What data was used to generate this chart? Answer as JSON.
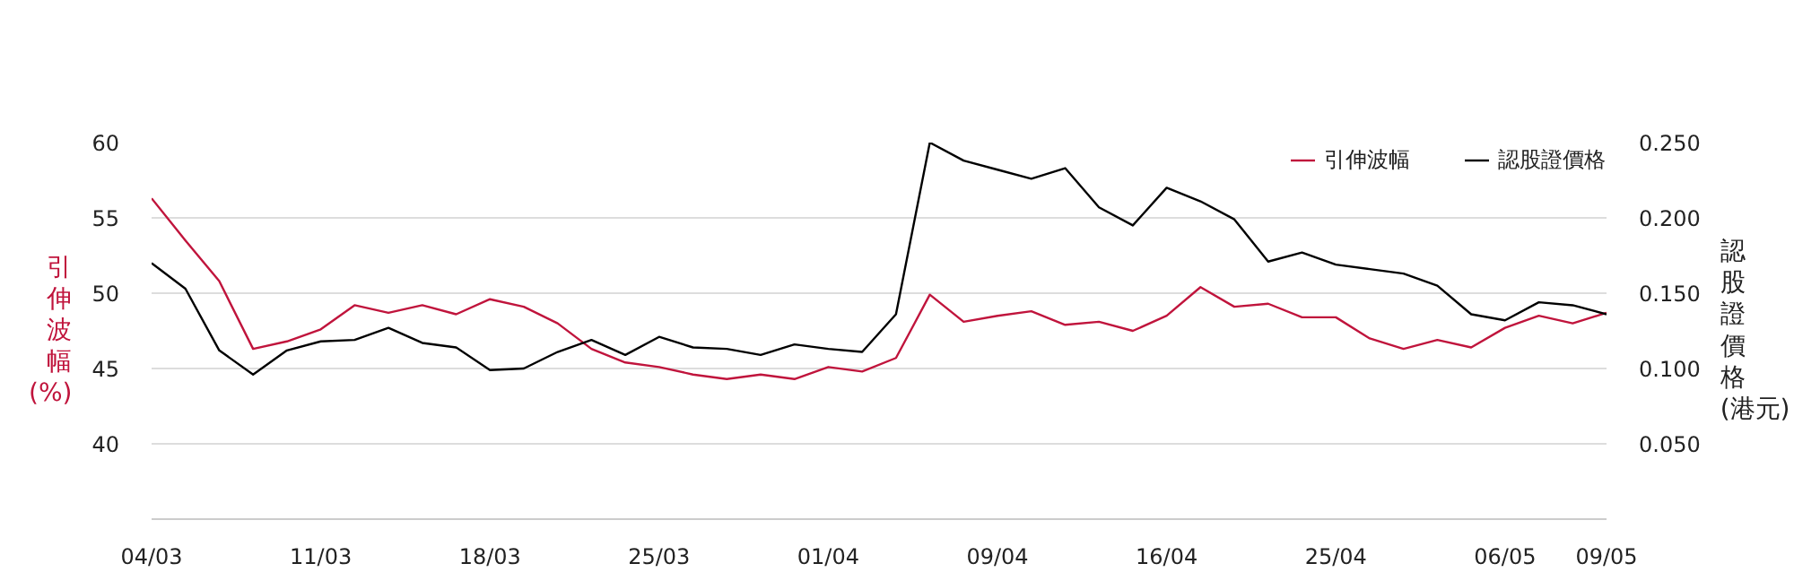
{
  "chart_data": {
    "type": "line",
    "categories": [
      "04/03",
      null,
      null,
      null,
      null,
      "11/03",
      null,
      null,
      null,
      null,
      "18/03",
      null,
      null,
      null,
      null,
      "25/03",
      null,
      null,
      null,
      null,
      "01/04",
      null,
      null,
      null,
      null,
      "09/04",
      null,
      null,
      null,
      null,
      "16/04",
      null,
      null,
      null,
      null,
      "25/04",
      null,
      null,
      null,
      null,
      "06/05",
      null,
      null,
      "09/05"
    ],
    "ylabel": "引伸波幅 (%)",
    "y2label": "認股證價格 (港元)",
    "ylim": [
      35,
      60
    ],
    "yticks": [
      40,
      45,
      50,
      55,
      60
    ],
    "y2lim": [
      0,
      0.25
    ],
    "y2ticks": [
      {
        "value": 0.05,
        "label": "0.050"
      },
      {
        "value": 0.1,
        "label": "0.100"
      },
      {
        "value": 0.15,
        "label": "0.150"
      },
      {
        "value": 0.2,
        "label": "0.200"
      },
      {
        "value": 0.25,
        "label": "0.250"
      }
    ],
    "grid": "y",
    "legend": "top right",
    "series": [
      {
        "name": "引伸波幅",
        "color": "#c0143c",
        "values": [
          56.3,
          53.5,
          50.8,
          46.3,
          46.8,
          47.6,
          49.2,
          48.7,
          49.2,
          48.6,
          49.6,
          49.1,
          48.0,
          46.3,
          45.4,
          45.1,
          44.6,
          44.3,
          44.6,
          44.3,
          45.1,
          44.8,
          45.7,
          49.9,
          48.1,
          48.5,
          48.8,
          47.9,
          48.1,
          47.5,
          48.5,
          50.4,
          49.1,
          49.3,
          48.4,
          48.4,
          47.0,
          46.3,
          46.9,
          46.4,
          47.7,
          48.5,
          48.0,
          48.7
        ]
      },
      {
        "name": "認股證價格",
        "color": "#000000",
        "axis": "y2",
        "values": [
          0.17,
          0.153,
          0.112,
          0.096,
          0.112,
          0.118,
          0.119,
          0.127,
          0.117,
          0.114,
          0.099,
          0.1,
          0.111,
          0.119,
          0.109,
          0.121,
          0.114,
          0.113,
          0.109,
          0.116,
          0.113,
          0.111,
          0.136,
          0.25,
          0.238,
          0.232,
          0.226,
          0.233,
          0.207,
          0.195,
          0.22,
          0.211,
          0.199,
          0.171,
          0.177,
          0.169,
          0.166,
          0.163,
          0.155,
          0.136,
          0.132,
          0.144,
          0.142,
          0.136
        ]
      }
    ]
  }
}
